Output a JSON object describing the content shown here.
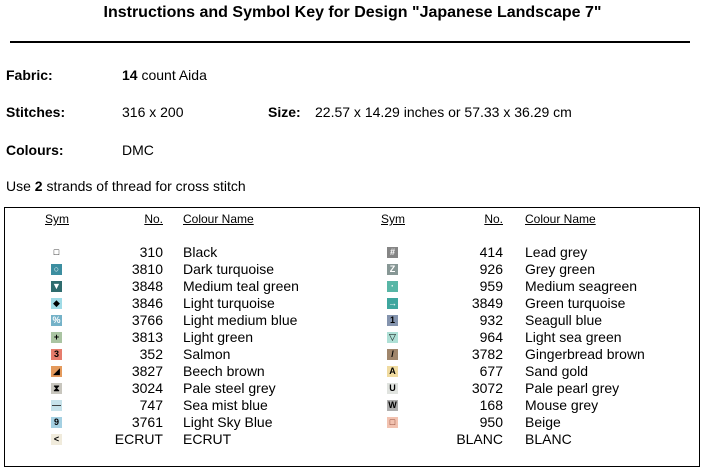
{
  "header": {
    "title": "Instructions and Symbol Key for Design \"Japanese Landscape 7\""
  },
  "fabric": {
    "label": "Fabric:",
    "count": "14",
    "text": "count Aida"
  },
  "stitches": {
    "label": "Stitches:",
    "value": "316 x 200",
    "size_label": "Size:",
    "size_value": "22.57 x 14.29 inches or 57.33 x 36.29 cm"
  },
  "colours": {
    "label": "Colours:",
    "value": "DMC"
  },
  "instruction": {
    "before": "Use",
    "strands": "2",
    "after": "strands of thread for cross stitch"
  },
  "table": {
    "headers": [
      "Sym",
      "No.",
      "Colour Name"
    ],
    "left": [
      {
        "sym": "□",
        "bg": "#ffffff",
        "fg": "#000000",
        "no": "310",
        "name": "Black"
      },
      {
        "sym": "○",
        "bg": "#3c8ea0",
        "fg": "#ffffff",
        "no": "3810",
        "name": "Dark turquoise"
      },
      {
        "sym": "▼",
        "bg": "#2f6c6e",
        "fg": "#ffffff",
        "no": "3848",
        "name": "Medium teal green"
      },
      {
        "sym": "◆",
        "bg": "#9fdbe6",
        "fg": "#000000",
        "no": "3846",
        "name": "Light turquoise"
      },
      {
        "sym": "%",
        "bg": "#74b2c8",
        "fg": "#ffffff",
        "no": "3766",
        "name": "Light medium blue"
      },
      {
        "sym": "+",
        "bg": "#aac4a2",
        "fg": "#000000",
        "no": "3813",
        "name": "Light green"
      },
      {
        "sym": "3",
        "bg": "#e67c6c",
        "fg": "#000000",
        "no": "352",
        "name": "Salmon"
      },
      {
        "sym": "◢",
        "bg": "#e49a5c",
        "fg": "#000000",
        "no": "3827",
        "name": "Beech brown"
      },
      {
        "sym": "⧗",
        "bg": "#c8c6be",
        "fg": "#000000",
        "no": "3024",
        "name": "Pale steel grey"
      },
      {
        "sym": "—",
        "bg": "#c6e2ea",
        "fg": "#333333",
        "no": "747",
        "name": "Sea mist blue"
      },
      {
        "sym": "9",
        "bg": "#a4d0e2",
        "fg": "#000000",
        "no": "3761",
        "name": "Light Sky Blue"
      },
      {
        "sym": "<",
        "bg": "#f0ebdc",
        "fg": "#000000",
        "no": "ECRUT",
        "name": "ECRUT"
      }
    ],
    "right": [
      {
        "sym": "#",
        "bg": "#858585",
        "fg": "#ffffff",
        "no": "414",
        "name": "Lead grey"
      },
      {
        "sym": "Z",
        "bg": "#879795",
        "fg": "#ffffff",
        "no": "926",
        "name": "Grey green"
      },
      {
        "sym": "·",
        "bg": "#58b6a6",
        "fg": "#ffffff",
        "no": "959",
        "name": "Medium seagreen"
      },
      {
        "sym": "→",
        "bg": "#3ea69e",
        "fg": "#ffffff",
        "no": "3849",
        "name": "Green turquoise"
      },
      {
        "sym": "1",
        "bg": "#8494ae",
        "fg": "#000000",
        "no": "932",
        "name": "Seagull blue"
      },
      {
        "sym": "▽",
        "bg": "#aee0d6",
        "fg": "#000000",
        "no": "964",
        "name": "Light sea green"
      },
      {
        "sym": "/",
        "bg": "#a0866c",
        "fg": "#000000",
        "no": "3782",
        "name": "Gingerbread brown"
      },
      {
        "sym": "A",
        "bg": "#f0dba0",
        "fg": "#000000",
        "no": "677",
        "name": "Sand gold"
      },
      {
        "sym": "U",
        "bg": "#e0e3df",
        "fg": "#000000",
        "no": "3072",
        "name": "Pale pearl grey"
      },
      {
        "sym": "W",
        "bg": "#aeaeae",
        "fg": "#000000",
        "no": "168",
        "name": "Mouse grey"
      },
      {
        "sym": "□",
        "bg": "#f2c2b0",
        "fg": "#7a3020",
        "no": "950",
        "name": "Beige"
      },
      {
        "sym": null,
        "bg": "#ffffff",
        "fg": "#000000",
        "no": "BLANC",
        "name": "BLANC"
      }
    ]
  }
}
